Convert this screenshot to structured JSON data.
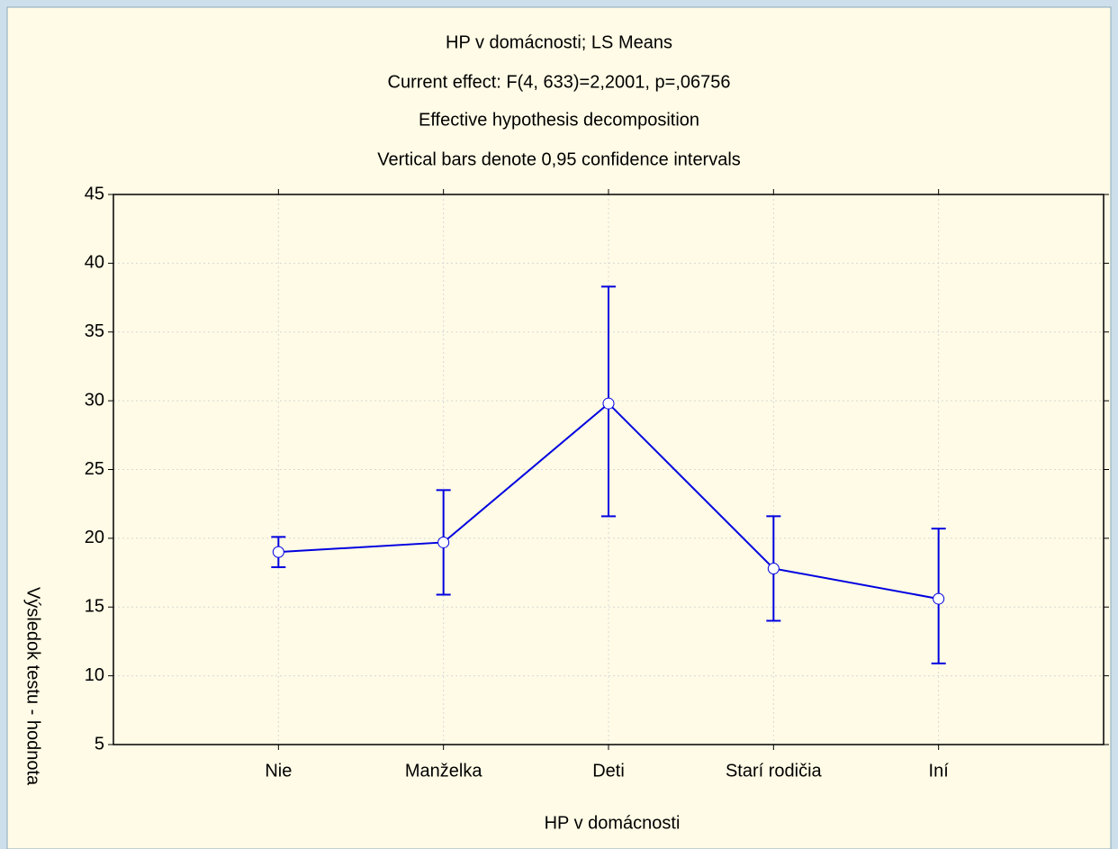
{
  "chart_data": {
    "type": "line",
    "title": "HP v domácnosti; LS Means",
    "subtitle": [
      "Current effect: F(4, 633)=2,2001, p=,06756",
      "Effective hypothesis decomposition",
      "Vertical bars denote 0,95 confidence intervals"
    ],
    "x_label": "HP v domácnosti",
    "y_label": "Výsledok testu - hodnota",
    "categories": [
      "Nie",
      "Manželka",
      "Deti",
      "Starí rodičia",
      "Iní"
    ],
    "series": [
      {
        "color": "#0000e0",
        "values": [
          19.0,
          19.7,
          29.8,
          17.8,
          15.6
        ],
        "ci_lower": [
          17.9,
          15.9,
          21.6,
          14.0,
          10.9
        ],
        "ci_upper": [
          20.1,
          23.5,
          38.3,
          21.6,
          20.7
        ]
      }
    ],
    "ylim": [
      5,
      45
    ],
    "yticks": [
      5,
      10,
      15,
      20,
      25,
      30,
      35,
      40,
      45
    ],
    "grid": true
  }
}
